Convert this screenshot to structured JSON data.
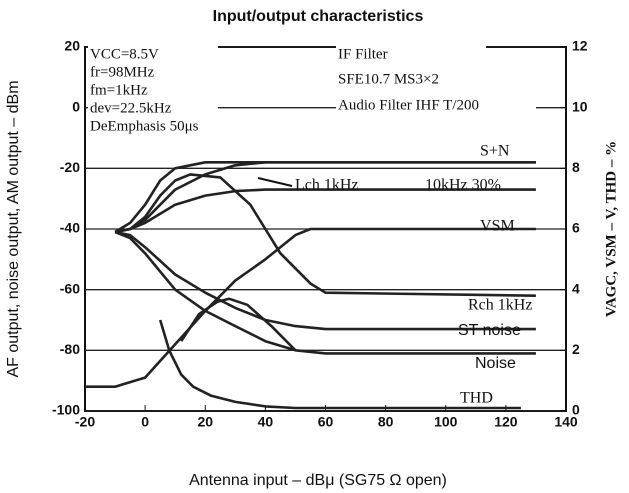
{
  "chart_data": {
    "type": "line",
    "title": "Input/output characteristics",
    "x_label": "Antenna input – dBμ (SG75 Ω open)",
    "y_label": "AF output, noise output, AM output – dBm",
    "y2_label": "VAGC, VSM – V, THD – %",
    "xlim": [
      -20,
      140
    ],
    "xticks": [
      -20,
      0,
      20,
      40,
      60,
      80,
      100,
      120,
      140
    ],
    "ylim": [
      -100,
      20
    ],
    "yticks": [
      -100,
      -80,
      -60,
      -40,
      -20,
      0,
      20
    ],
    "y2lim": [
      0,
      12
    ],
    "y2ticks": [
      0,
      2,
      4,
      6,
      8,
      10,
      12
    ],
    "grid": true,
    "conditions": [
      "VCC=8.5V",
      "fr=98MHz",
      "fm=1kHz",
      "dev=22.5kHz",
      "DeEmphasis 50μs"
    ],
    "filters": [
      "IF Filter",
      "SFE10.7 MS3×2",
      "Audio Filter IHF T/200"
    ],
    "annotations": [
      "S+N",
      "Lch 1kHz",
      "10kHz 30%",
      "VSM",
      "Rch 1kHz",
      "ST noise",
      "Noise",
      "THD"
    ],
    "series": [
      {
        "name": "S+N",
        "color": "#222",
        "x": [
          -10,
          -5,
          0,
          5,
          10,
          15,
          20,
          30,
          130
        ],
        "values": [
          -41,
          -38,
          -32,
          -24,
          -20,
          -19,
          -18,
          -18,
          -18
        ]
      },
      {
        "name": "Lch 1kHz",
        "color": "#222",
        "x": [
          -10,
          -5,
          0,
          5,
          10,
          20,
          30,
          40,
          130
        ],
        "values": [
          -41,
          -40,
          -37,
          -32,
          -27,
          -22,
          -19,
          -18,
          -18
        ]
      },
      {
        "name": "10kHz 30%",
        "color": "#222",
        "x": [
          -10,
          -5,
          0,
          5,
          10,
          20,
          30,
          40,
          130
        ],
        "values": [
          -41,
          -40,
          -38,
          -35,
          -32,
          -29,
          -27.5,
          -27,
          -27
        ]
      },
      {
        "name": "Rch 1kHz",
        "color": "#222",
        "x": [
          -10,
          -5,
          0,
          5,
          10,
          15,
          25,
          35,
          45,
          55,
          60,
          130
        ],
        "values": [
          -41,
          -40,
          -36,
          -29,
          -24,
          -22,
          -23,
          -32,
          -48,
          -58,
          -61,
          -62
        ]
      },
      {
        "name": "ST noise",
        "color": "#222",
        "x": [
          -10,
          -5,
          0,
          10,
          20,
          30,
          40,
          50,
          60,
          130
        ],
        "values": [
          -41,
          -42,
          -46,
          -55,
          -61,
          -66,
          -70,
          -72,
          -73,
          -73
        ]
      },
      {
        "name": "Noise",
        "color": "#222",
        "x": [
          -10,
          -5,
          0,
          10,
          20,
          30,
          40,
          50,
          60,
          130
        ],
        "values": [
          -41,
          -43,
          -48,
          -60,
          -67,
          -72,
          -77,
          -80,
          -81,
          -81
        ]
      },
      {
        "name": "VSM",
        "color": "#222",
        "axis": "y2",
        "x": [
          -20,
          -10,
          0,
          10,
          20,
          30,
          40,
          50,
          55,
          60,
          130
        ],
        "values": [
          0.8,
          0.8,
          1.1,
          2.2,
          3.3,
          4.3,
          5.0,
          5.8,
          6,
          6,
          6
        ]
      },
      {
        "color": "#222",
        "x": [
          12,
          18,
          24,
          28,
          34,
          42,
          50
        ],
        "values": [
          -77,
          -68,
          -64,
          -63,
          -65,
          -72,
          -80
        ]
      },
      {
        "name": "THD",
        "color": "#222",
        "axis": "y2",
        "x": [
          5,
          8,
          12,
          16,
          22,
          30,
          40,
          50,
          125
        ],
        "values": [
          3.0,
          2.0,
          1.2,
          0.8,
          0.5,
          0.3,
          0.15,
          0.1,
          0.1
        ]
      }
    ]
  }
}
